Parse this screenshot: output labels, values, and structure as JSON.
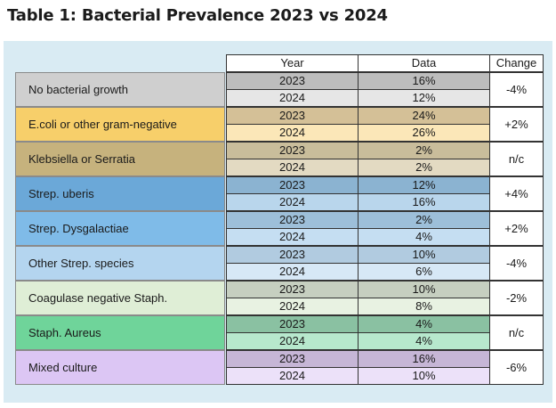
{
  "title": "Table 1: Bacterial Prevalence 2023 vs 2024",
  "headers": {
    "year": "Year",
    "data": "Data",
    "change": "Change"
  },
  "rows": [
    {
      "label": "No bacterial growth",
      "y1": "2023",
      "d1": "16%",
      "y2": "2024",
      "d2": "12%",
      "change": "-4%",
      "colors": {
        "label": "#cfcfcf",
        "dark": "#bdbdbd",
        "light": "#e6e6e6"
      }
    },
    {
      "label": "E.coli or other gram-negative",
      "y1": "2023",
      "d1": "24%",
      "y2": "2024",
      "d2": "26%",
      "change": "+2%",
      "colors": {
        "label": "#f7cf6a",
        "dark": "#d4c097",
        "light": "#fbe7b8"
      }
    },
    {
      "label": "Klebsiella or Serratia",
      "y1": "2023",
      "d1": "2%",
      "y2": "2024",
      "d2": "2%",
      "change": "n/c",
      "colors": {
        "label": "#c6b27d",
        "dark": "#c9bd9b",
        "light": "#e3dac2"
      }
    },
    {
      "label": "Strep. uberis",
      "y1": "2023",
      "d1": "12%",
      "y2": "2024",
      "d2": "16%",
      "change": "+4%",
      "colors": {
        "label": "#6ba8d8",
        "dark": "#8bb3d1",
        "light": "#b9d6ec"
      }
    },
    {
      "label": "Strep. Dysgalactiae",
      "y1": "2023",
      "d1": "2%",
      "y2": "2024",
      "d2": "4%",
      "change": "+2%",
      "colors": {
        "label": "#7fbbe8",
        "dark": "#9dbfd9",
        "light": "#c5def2"
      }
    },
    {
      "label": "Other Strep. species",
      "y1": "2023",
      "d1": "10%",
      "y2": "2024",
      "d2": "6%",
      "change": "-4%",
      "colors": {
        "label": "#b4d5ef",
        "dark": "#b1cbe0",
        "light": "#d7e8f6"
      }
    },
    {
      "label": "Coagulase negative Staph.",
      "y1": "2023",
      "d1": "10%",
      "y2": "2024",
      "d2": "8%",
      "change": "-2%",
      "colors": {
        "label": "#dfeed6",
        "dark": "#c6cfc0",
        "light": "#e8f2e2"
      }
    },
    {
      "label": "Staph. Aureus",
      "y1": "2023",
      "d1": "4%",
      "y2": "2024",
      "d2": "4%",
      "change": "n/c",
      "colors": {
        "label": "#6fd49a",
        "dark": "#8ac1a2",
        "light": "#b7e8cd"
      }
    },
    {
      "label": "Mixed culture",
      "y1": "2023",
      "d1": "16%",
      "y2": "2024",
      "d2": "10%",
      "change": "-6%",
      "colors": {
        "label": "#dcc6f4",
        "dark": "#c6b6d6",
        "light": "#ece1f9"
      }
    }
  ]
}
